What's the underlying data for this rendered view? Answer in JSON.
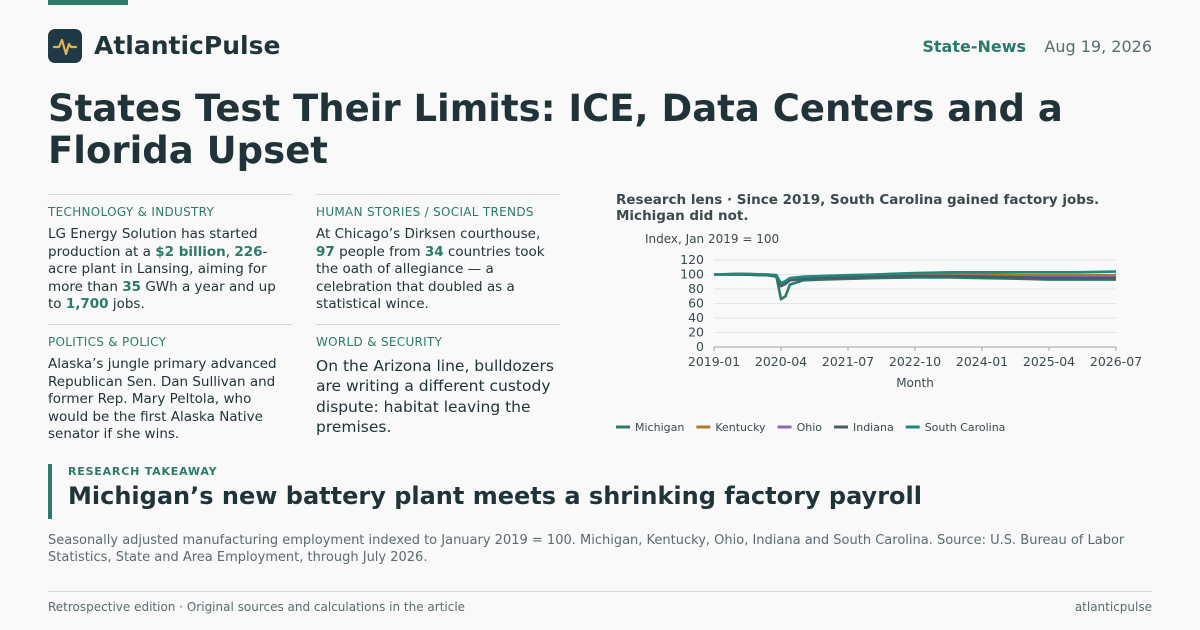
{
  "header": {
    "brand": "AtlanticPulse",
    "section": "State-News",
    "date": "Aug 19, 2026",
    "logo_icon": "pulse-icon"
  },
  "headline": "States Test Their Limits: ICE, Data Centers and a Florida Upset",
  "cards": [
    {
      "category": "TECHNOLOGY & INDUSTRY",
      "parts": [
        {
          "t": "LG Energy Solution has started production at a "
        },
        {
          "t": "$2 billion",
          "b": true
        },
        {
          "t": ", "
        },
        {
          "t": "226",
          "b": true
        },
        {
          "t": "-acre plant in Lansing, aiming for more than "
        },
        {
          "t": "35",
          "b": true
        },
        {
          "t": " GWh a year and up to "
        },
        {
          "t": "1,700",
          "b": true
        },
        {
          "t": " jobs."
        }
      ]
    },
    {
      "category": "POLITICS & POLICY",
      "parts": [
        {
          "t": "Alaska’s jungle primary advanced Republican Sen. Dan Sullivan and former Rep. Mary Peltola, who would be the first Alaska Native senator if she wins."
        }
      ]
    },
    {
      "category": "HUMAN STORIES / SOCIAL TRENDS",
      "parts": [
        {
          "t": "At Chicago’s Dirksen courthouse, "
        },
        {
          "t": "97",
          "b": true
        },
        {
          "t": " people from "
        },
        {
          "t": "34",
          "b": true
        },
        {
          "t": " countries took the oath of allegiance — a celebration that doubled as a statistical wince."
        }
      ]
    },
    {
      "category": "WORLD & SECURITY",
      "large": true,
      "parts": [
        {
          "t": "On the Arizona line, bulldozers are writing a different custody dispute: habitat leaving the premises."
        }
      ]
    }
  ],
  "chart_data": {
    "type": "line",
    "title": "Research lens · Since 2019, South Carolina gained factory jobs. Michigan did not.",
    "ylabel": "Index, Jan 2019 = 100",
    "xlabel": "Month",
    "ylim": [
      0,
      120
    ],
    "yticks": [
      0,
      20,
      40,
      60,
      80,
      100,
      120
    ],
    "xlim": [
      "2019-01",
      "2026-07"
    ],
    "xticks": [
      "2019-01",
      "2020-04",
      "2021-07",
      "2022-10",
      "2024-01",
      "2025-04",
      "2026-07"
    ],
    "grid": true,
    "legend": "bottom",
    "series": [
      {
        "name": "Michigan",
        "color": "#2b7a6a",
        "points": [
          [
            "2019-01",
            100
          ],
          [
            "2019-07",
            100
          ],
          [
            "2020-01",
            99
          ],
          [
            "2020-03",
            97
          ],
          [
            "2020-04",
            66
          ],
          [
            "2020-05",
            70
          ],
          [
            "2020-06",
            86
          ],
          [
            "2020-09",
            92
          ],
          [
            "2021-01",
            93
          ],
          [
            "2021-07",
            94
          ],
          [
            "2022-01",
            95
          ],
          [
            "2022-10",
            96
          ],
          [
            "2023-06",
            96
          ],
          [
            "2024-01",
            95
          ],
          [
            "2024-10",
            94
          ],
          [
            "2025-04",
            93
          ],
          [
            "2025-10",
            93
          ],
          [
            "2026-07",
            93
          ]
        ]
      },
      {
        "name": "Kentucky",
        "color": "#b07a2a",
        "points": [
          [
            "2019-01",
            100
          ],
          [
            "2019-07",
            101
          ],
          [
            "2020-01",
            100
          ],
          [
            "2020-03",
            99
          ],
          [
            "2020-04",
            84
          ],
          [
            "2020-05",
            88
          ],
          [
            "2020-06",
            93
          ],
          [
            "2020-09",
            95
          ],
          [
            "2021-01",
            96
          ],
          [
            "2021-07",
            97
          ],
          [
            "2022-01",
            98
          ],
          [
            "2022-10",
            99
          ],
          [
            "2023-06",
            100
          ],
          [
            "2024-01",
            100
          ],
          [
            "2024-10",
            99
          ],
          [
            "2025-04",
            99
          ],
          [
            "2025-10",
            99
          ],
          [
            "2026-07",
            99
          ]
        ]
      },
      {
        "name": "Ohio",
        "color": "#8e6bb0",
        "points": [
          [
            "2019-01",
            100
          ],
          [
            "2019-07",
            100
          ],
          [
            "2020-01",
            99
          ],
          [
            "2020-03",
            98
          ],
          [
            "2020-04",
            87
          ],
          [
            "2020-05",
            89
          ],
          [
            "2020-06",
            93
          ],
          [
            "2020-09",
            95
          ],
          [
            "2021-01",
            96
          ],
          [
            "2021-07",
            96
          ],
          [
            "2022-01",
            97
          ],
          [
            "2022-10",
            98
          ],
          [
            "2023-06",
            98
          ],
          [
            "2024-01",
            98
          ],
          [
            "2024-10",
            97
          ],
          [
            "2025-04",
            97
          ],
          [
            "2025-10",
            97
          ],
          [
            "2026-07",
            97
          ]
        ]
      },
      {
        "name": "Indiana",
        "color": "#4a5a66",
        "points": [
          [
            "2019-01",
            100
          ],
          [
            "2019-07",
            100
          ],
          [
            "2020-01",
            99
          ],
          [
            "2020-03",
            98
          ],
          [
            "2020-04",
            84
          ],
          [
            "2020-05",
            87
          ],
          [
            "2020-06",
            92
          ],
          [
            "2020-09",
            94
          ],
          [
            "2021-01",
            95
          ],
          [
            "2021-07",
            96
          ],
          [
            "2022-01",
            97
          ],
          [
            "2022-10",
            98
          ],
          [
            "2023-06",
            98
          ],
          [
            "2024-01",
            97
          ],
          [
            "2024-10",
            96
          ],
          [
            "2025-04",
            95
          ],
          [
            "2025-10",
            95
          ],
          [
            "2026-07",
            95
          ]
        ]
      },
      {
        "name": "South Carolina",
        "color": "#1f8a7a",
        "points": [
          [
            "2019-01",
            100
          ],
          [
            "2019-07",
            101
          ],
          [
            "2020-01",
            100
          ],
          [
            "2020-03",
            99
          ],
          [
            "2020-04",
            88
          ],
          [
            "2020-05",
            91
          ],
          [
            "2020-06",
            95
          ],
          [
            "2020-09",
            97
          ],
          [
            "2021-01",
            98
          ],
          [
            "2021-07",
            99
          ],
          [
            "2022-01",
            100
          ],
          [
            "2022-10",
            102
          ],
          [
            "2023-06",
            103
          ],
          [
            "2024-01",
            103
          ],
          [
            "2024-10",
            103
          ],
          [
            "2025-04",
            103
          ],
          [
            "2025-10",
            103
          ],
          [
            "2026-07",
            104
          ]
        ]
      }
    ]
  },
  "takeaway": {
    "kicker": "RESEARCH TAKEAWAY",
    "title": "Michigan’s new battery plant meets a shrinking factory payroll"
  },
  "caption": "Seasonally adjusted manufacturing employment indexed to January 2019 = 100. Michigan, Kentucky, Ohio, Indiana and South Carolina. Source: U.S. Bureau of Labor Statistics, State and Area Employment, through July 2026.",
  "footer": {
    "left": "Retrospective edition · Original sources and calculations in the article",
    "right": "atlanticpulse"
  }
}
